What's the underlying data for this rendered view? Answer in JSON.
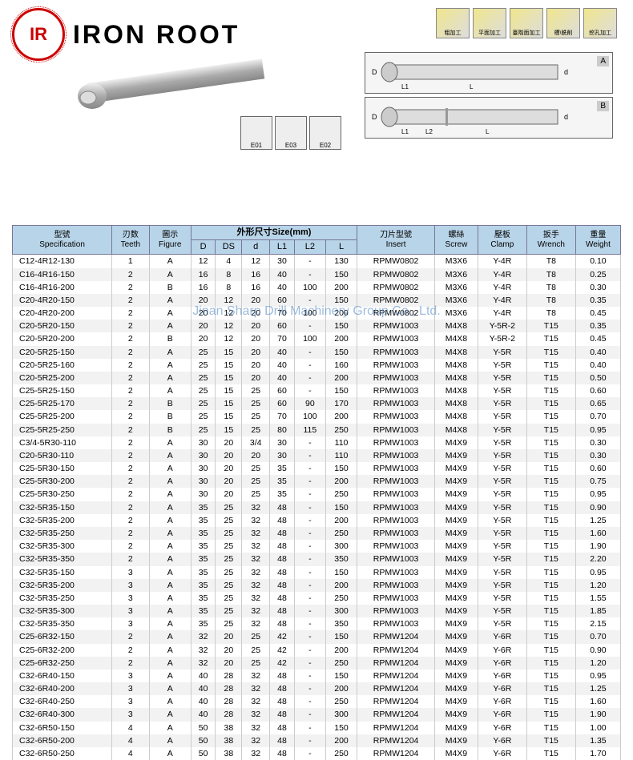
{
  "brand": {
    "logo_text": "IR",
    "name": "IRON ROOT"
  },
  "process_icons": [
    {
      "label": "粗加工"
    },
    {
      "label": "平面加工"
    },
    {
      "label": "臺階面加工"
    },
    {
      "label": "槽\\銑削"
    },
    {
      "label": "挖孔加工"
    }
  ],
  "diagrams": [
    {
      "dims": "D DS L1 L d",
      "label": "A"
    },
    {
      "dims": "D DS L1 L2 L d ø0.2",
      "label": "B"
    }
  ],
  "insert_icons": [
    {
      "label": "E01"
    },
    {
      "label": "E03"
    },
    {
      "label": "E02"
    }
  ],
  "watermark": "Jinan Sharp Drill Machinery Group Co., Ltd.",
  "headers": {
    "spec_cn": "型號",
    "spec_en": "Specification",
    "teeth_cn": "刃数",
    "teeth_en": "Teeth",
    "fig_cn": "圖示",
    "fig_en": "Figure",
    "size_cn": "外形尺寸",
    "size_en": "Size(mm)",
    "d_u": "D",
    "ds": "DS",
    "d_l": "d",
    "l1": "L1",
    "l2": "L2",
    "l": "L",
    "insert_cn": "刀片型號",
    "insert_en": "Insert",
    "screw_cn": "螺絲",
    "screw_en": "Screw",
    "clamp_cn": "壓板",
    "clamp_en": "Clamp",
    "wrench_cn": "扳手",
    "wrench_en": "Wrench",
    "weight_cn": "重量",
    "weight_en": "Weight"
  },
  "rows": [
    [
      "C12-4R12-130",
      "1",
      "A",
      "12",
      "4",
      "12",
      "30",
      "-",
      "130",
      "RPMW0802",
      "M3X6",
      "Y-4R",
      "T8",
      "0.10"
    ],
    [
      "C16-4R16-150",
      "2",
      "A",
      "16",
      "8",
      "16",
      "40",
      "-",
      "150",
      "RPMW0802",
      "M3X6",
      "Y-4R",
      "T8",
      "0.25"
    ],
    [
      "C16-4R16-200",
      "2",
      "B",
      "16",
      "8",
      "16",
      "40",
      "100",
      "200",
      "RPMW0802",
      "M3X6",
      "Y-4R",
      "T8",
      "0.30"
    ],
    [
      "C20-4R20-150",
      "2",
      "A",
      "20",
      "12",
      "20",
      "60",
      "-",
      "150",
      "RPMW0802",
      "M3X6",
      "Y-4R",
      "T8",
      "0.35"
    ],
    [
      "C20-4R20-200",
      "2",
      "A",
      "20",
      "12",
      "20",
      "70",
      "100",
      "200",
      "RPMW0802",
      "M3X6",
      "Y-4R",
      "T8",
      "0.45"
    ],
    [
      "C20-5R20-150",
      "2",
      "A",
      "20",
      "12",
      "20",
      "60",
      "-",
      "150",
      "RPMW1003",
      "M4X8",
      "Y-5R-2",
      "T15",
      "0.35"
    ],
    [
      "C20-5R20-200",
      "2",
      "B",
      "20",
      "12",
      "20",
      "70",
      "100",
      "200",
      "RPMW1003",
      "M4X8",
      "Y-5R-2",
      "T15",
      "0.45"
    ],
    [
      "C20-5R25-150",
      "2",
      "A",
      "25",
      "15",
      "20",
      "40",
      "-",
      "150",
      "RPMW1003",
      "M4X8",
      "Y-5R",
      "T15",
      "0.40"
    ],
    [
      "C20-5R25-160",
      "2",
      "A",
      "25",
      "15",
      "20",
      "40",
      "-",
      "160",
      "RPMW1003",
      "M4X8",
      "Y-5R",
      "T15",
      "0.40"
    ],
    [
      "C20-5R25-200",
      "2",
      "A",
      "25",
      "15",
      "20",
      "40",
      "-",
      "200",
      "RPMW1003",
      "M4X8",
      "Y-5R",
      "T15",
      "0.50"
    ],
    [
      "C25-5R25-150",
      "2",
      "A",
      "25",
      "15",
      "25",
      "60",
      "-",
      "150",
      "RPMW1003",
      "M4X8",
      "Y-5R",
      "T15",
      "0.60"
    ],
    [
      "C25-5R25-170",
      "2",
      "B",
      "25",
      "15",
      "25",
      "60",
      "90",
      "170",
      "RPMW1003",
      "M4X8",
      "Y-5R",
      "T15",
      "0.65"
    ],
    [
      "C25-5R25-200",
      "2",
      "B",
      "25",
      "15",
      "25",
      "70",
      "100",
      "200",
      "RPMW1003",
      "M4X8",
      "Y-5R",
      "T15",
      "0.70"
    ],
    [
      "C25-5R25-250",
      "2",
      "B",
      "25",
      "15",
      "25",
      "80",
      "115",
      "250",
      "RPMW1003",
      "M4X8",
      "Y-5R",
      "T15",
      "0.95"
    ],
    [
      "C3/4-5R30-110",
      "2",
      "A",
      "30",
      "20",
      "3/4",
      "30",
      "-",
      "110",
      "RPMW1003",
      "M4X9",
      "Y-5R",
      "T15",
      "0.30"
    ],
    [
      "C20-5R30-110",
      "2",
      "A",
      "30",
      "20",
      "20",
      "30",
      "-",
      "110",
      "RPMW1003",
      "M4X9",
      "Y-5R",
      "T15",
      "0.30"
    ],
    [
      "C25-5R30-150",
      "2",
      "A",
      "30",
      "20",
      "25",
      "35",
      "-",
      "150",
      "RPMW1003",
      "M4X9",
      "Y-5R",
      "T15",
      "0.60"
    ],
    [
      "C25-5R30-200",
      "2",
      "A",
      "30",
      "20",
      "25",
      "35",
      "-",
      "200",
      "RPMW1003",
      "M4X9",
      "Y-5R",
      "T15",
      "0.75"
    ],
    [
      "C25-5R30-250",
      "2",
      "A",
      "30",
      "20",
      "25",
      "35",
      "-",
      "250",
      "RPMW1003",
      "M4X9",
      "Y-5R",
      "T15",
      "0.95"
    ],
    [
      "C32-5R35-150",
      "2",
      "A",
      "35",
      "25",
      "32",
      "48",
      "-",
      "150",
      "RPMW1003",
      "M4X9",
      "Y-5R",
      "T15",
      "0.90"
    ],
    [
      "C32-5R35-200",
      "2",
      "A",
      "35",
      "25",
      "32",
      "48",
      "-",
      "200",
      "RPMW1003",
      "M4X9",
      "Y-5R",
      "T15",
      "1.25"
    ],
    [
      "C32-5R35-250",
      "2",
      "A",
      "35",
      "25",
      "32",
      "48",
      "-",
      "250",
      "RPMW1003",
      "M4X9",
      "Y-5R",
      "T15",
      "1.60"
    ],
    [
      "C32-5R35-300",
      "2",
      "A",
      "35",
      "25",
      "32",
      "48",
      "-",
      "300",
      "RPMW1003",
      "M4X9",
      "Y-5R",
      "T15",
      "1.90"
    ],
    [
      "C32-5R35-350",
      "2",
      "A",
      "35",
      "25",
      "32",
      "48",
      "-",
      "350",
      "RPMW1003",
      "M4X9",
      "Y-5R",
      "T15",
      "2.20"
    ],
    [
      "C32-5R35-150",
      "3",
      "A",
      "35",
      "25",
      "32",
      "48",
      "-",
      "150",
      "RPMW1003",
      "M4X9",
      "Y-5R",
      "T15",
      "0.95"
    ],
    [
      "C32-5R35-200",
      "3",
      "A",
      "35",
      "25",
      "32",
      "48",
      "-",
      "200",
      "RPMW1003",
      "M4X9",
      "Y-5R",
      "T15",
      "1.20"
    ],
    [
      "C32-5R35-250",
      "3",
      "A",
      "35",
      "25",
      "32",
      "48",
      "-",
      "250",
      "RPMW1003",
      "M4X9",
      "Y-5R",
      "T15",
      "1.55"
    ],
    [
      "C32-5R35-300",
      "3",
      "A",
      "35",
      "25",
      "32",
      "48",
      "-",
      "300",
      "RPMW1003",
      "M4X9",
      "Y-5R",
      "T15",
      "1.85"
    ],
    [
      "C32-5R35-350",
      "3",
      "A",
      "35",
      "25",
      "32",
      "48",
      "-",
      "350",
      "RPMW1003",
      "M4X9",
      "Y-5R",
      "T15",
      "2.15"
    ],
    [
      "C25-6R32-150",
      "2",
      "A",
      "32",
      "20",
      "25",
      "42",
      "-",
      "150",
      "RPMW1204",
      "M4X9",
      "Y-6R",
      "T15",
      "0.70"
    ],
    [
      "C25-6R32-200",
      "2",
      "A",
      "32",
      "20",
      "25",
      "42",
      "-",
      "200",
      "RPMW1204",
      "M4X9",
      "Y-6R",
      "T15",
      "0.90"
    ],
    [
      "C25-6R32-250",
      "2",
      "A",
      "32",
      "20",
      "25",
      "42",
      "-",
      "250",
      "RPMW1204",
      "M4X9",
      "Y-6R",
      "T15",
      "1.20"
    ],
    [
      "C32-6R40-150",
      "3",
      "A",
      "40",
      "28",
      "32",
      "48",
      "-",
      "150",
      "RPMW1204",
      "M4X9",
      "Y-6R",
      "T15",
      "0.95"
    ],
    [
      "C32-6R40-200",
      "3",
      "A",
      "40",
      "28",
      "32",
      "48",
      "-",
      "200",
      "RPMW1204",
      "M4X9",
      "Y-6R",
      "T15",
      "1.25"
    ],
    [
      "C32-6R40-250",
      "3",
      "A",
      "40",
      "28",
      "32",
      "48",
      "-",
      "250",
      "RPMW1204",
      "M4X9",
      "Y-6R",
      "T15",
      "1.60"
    ],
    [
      "C32-6R40-300",
      "3",
      "A",
      "40",
      "28",
      "32",
      "48",
      "-",
      "300",
      "RPMW1204",
      "M4X9",
      "Y-6R",
      "T15",
      "1.90"
    ],
    [
      "C32-6R50-150",
      "4",
      "A",
      "50",
      "38",
      "32",
      "48",
      "-",
      "150",
      "RPMW1204",
      "M4X9",
      "Y-6R",
      "T15",
      "1.00"
    ],
    [
      "C32-6R50-200",
      "4",
      "A",
      "50",
      "38",
      "32",
      "48",
      "-",
      "200",
      "RPMW1204",
      "M4X9",
      "Y-6R",
      "T15",
      "1.35"
    ],
    [
      "C32-6R50-250",
      "4",
      "A",
      "50",
      "38",
      "32",
      "48",
      "-",
      "250",
      "RPMW1204",
      "M4X9",
      "Y-6R",
      "T15",
      "1.70"
    ]
  ]
}
